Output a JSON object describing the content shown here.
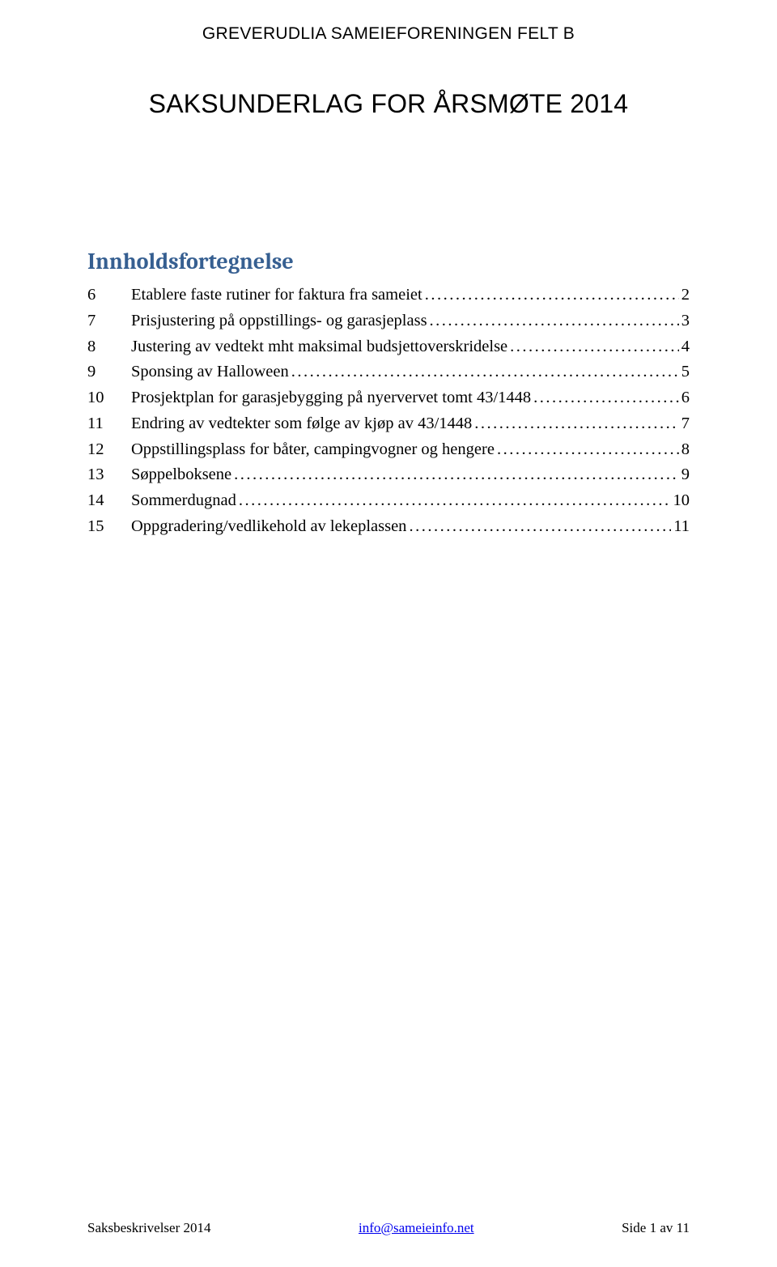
{
  "header": "GREVERUDLIA SAMEIEFORENINGEN FELT B",
  "title": "SAKSUNDERLAG FOR ÅRSMØTE 2014",
  "toc_heading": "Innholdsfortegnelse",
  "toc": [
    {
      "num": "6",
      "label": "Etablere faste rutiner for faktura fra sameiet",
      "page": "2"
    },
    {
      "num": "7",
      "label": "Prisjustering på oppstillings- og garasjeplass",
      "page": "3"
    },
    {
      "num": "8",
      "label": "Justering av vedtekt mht maksimal budsjettoverskridelse",
      "page": "4"
    },
    {
      "num": "9",
      "label": "Sponsing av Halloween",
      "page": "5"
    },
    {
      "num": "10",
      "label": "Prosjektplan for garasjebygging på nyervervet tomt 43/1448",
      "page": "6"
    },
    {
      "num": "11",
      "label": "Endring av vedtekter som følge av kjøp av 43/1448",
      "page": "7"
    },
    {
      "num": "12",
      "label": "Oppstillingsplass for båter, campingvogner og hengere",
      "page": "8"
    },
    {
      "num": "13",
      "label": "Søppelboksene",
      "page": "9"
    },
    {
      "num": "14",
      "label": "Sommerdugnad",
      "page": "10"
    },
    {
      "num": "15",
      "label": "Oppgradering/vedlikehold av lekeplassen",
      "page": "11"
    }
  ],
  "footer": {
    "left": "Saksbeskrivelser 2014",
    "center": "info@sameieinfo.net",
    "right": "Side 1 av 11"
  },
  "colors": {
    "heading": "#365f91",
    "link": "#0000ee",
    "text": "#000000",
    "background": "#ffffff"
  }
}
